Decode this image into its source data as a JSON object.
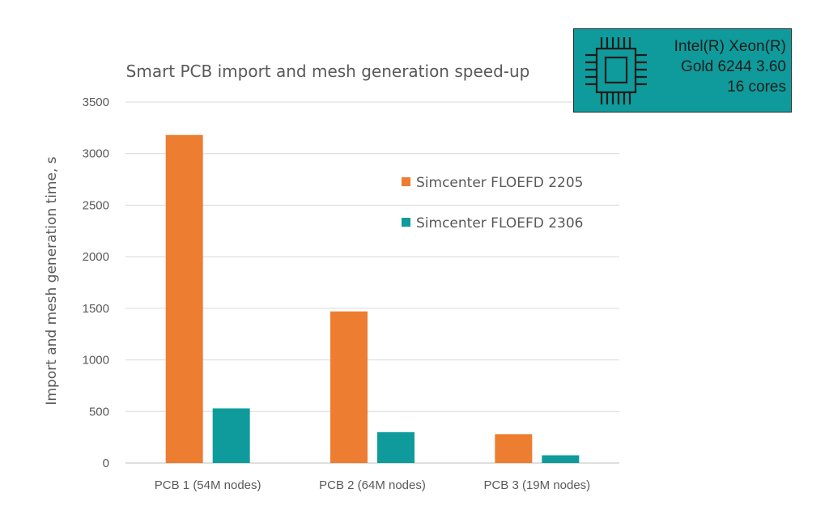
{
  "chart_data": {
    "type": "bar",
    "title": "Smart PCB import and mesh generation speed-up",
    "xlabel": "",
    "ylabel": "Import and mesh generation time, s",
    "categories": [
      "PCB 1 (54M nodes)",
      "PCB 2 (64M nodes)",
      "PCB 3 (19M nodes)"
    ],
    "series": [
      {
        "name": "Simcenter FLOEFD 2205",
        "color": "#ed7d31",
        "values": [
          3180,
          1470,
          280
        ]
      },
      {
        "name": "Simcenter FLOEFD 2306",
        "color": "#0f9b9b",
        "values": [
          530,
          300,
          75
        ]
      }
    ],
    "ylim": [
      0,
      3500
    ],
    "yticks": [
      0,
      500,
      1000,
      1500,
      2000,
      2500,
      3000,
      3500
    ],
    "grid": true,
    "legend_position": "top-right"
  },
  "cpu_badge": {
    "icon": "cpu-chip-icon",
    "lines": [
      "Intel(R) Xeon(R)",
      "Gold 6244 3.60",
      "16 cores"
    ],
    "background": "#0f9b9b"
  }
}
